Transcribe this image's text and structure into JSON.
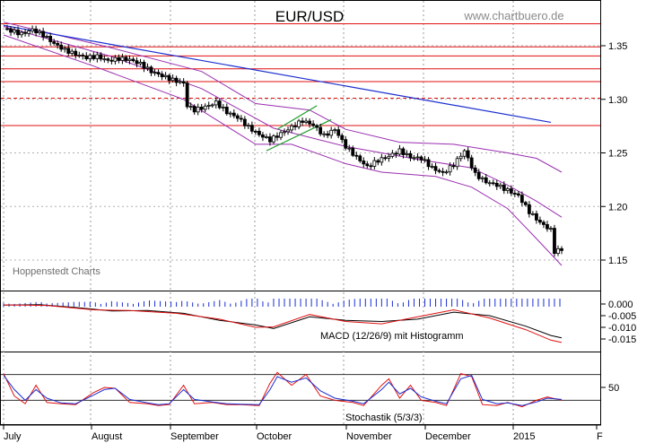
{
  "chart_data": [
    {
      "type": "candlestick",
      "title": "EUR/USD",
      "watermark": "www.chartbuero.de",
      "source_note": "Hoppenstedt Charts",
      "y_ticks": [
        "1.35",
        "1.30",
        "1.25",
        "1.20",
        "1.15"
      ],
      "y_tick_values": [
        1.35,
        1.3,
        1.25,
        1.2,
        1.15
      ],
      "ylim": [
        1.125,
        1.38
      ],
      "x_ticks": [
        "July",
        "August",
        "September",
        "October",
        "November",
        "December",
        "2015",
        "F"
      ],
      "horizontal_levels_solid": [
        1.3705,
        1.349,
        1.3405,
        1.3285,
        1.3165,
        1.2755
      ],
      "horizontal_levels_dashed": [
        1.301
      ],
      "trendline": {
        "color": "#1a2fd0",
        "from": {
          "day": 0,
          "value": 1.369
        },
        "to": {
          "day": 152,
          "value": 1.2785
        }
      },
      "channel_lines": {
        "color": "#1e9e2a",
        "upper": [
          {
            "day": 76,
            "value": 1.272
          },
          {
            "day": 87,
            "value": 1.294
          }
        ],
        "lower": [
          {
            "day": 73,
            "value": 1.252
          },
          {
            "day": 91,
            "value": 1.281
          }
        ]
      },
      "close_series": [
        {
          "day": 0,
          "value": 1.366
        },
        {
          "day": 2,
          "value": 1.364
        },
        {
          "day": 5,
          "value": 1.361
        },
        {
          "day": 8,
          "value": 1.365
        },
        {
          "day": 11,
          "value": 1.36
        },
        {
          "day": 14,
          "value": 1.352
        },
        {
          "day": 17,
          "value": 1.346
        },
        {
          "day": 20,
          "value": 1.342
        },
        {
          "day": 23,
          "value": 1.339
        },
        {
          "day": 26,
          "value": 1.34
        },
        {
          "day": 29,
          "value": 1.336
        },
        {
          "day": 32,
          "value": 1.338
        },
        {
          "day": 35,
          "value": 1.337
        },
        {
          "day": 38,
          "value": 1.333
        },
        {
          "day": 41,
          "value": 1.326
        },
        {
          "day": 44,
          "value": 1.322
        },
        {
          "day": 47,
          "value": 1.318
        },
        {
          "day": 50,
          "value": 1.315
        },
        {
          "day": 51,
          "value": 1.294
        },
        {
          "day": 53,
          "value": 1.29
        },
        {
          "day": 56,
          "value": 1.293
        },
        {
          "day": 59,
          "value": 1.297
        },
        {
          "day": 62,
          "value": 1.288
        },
        {
          "day": 65,
          "value": 1.283
        },
        {
          "day": 68,
          "value": 1.274
        },
        {
          "day": 71,
          "value": 1.267
        },
        {
          "day": 74,
          "value": 1.262
        },
        {
          "day": 77,
          "value": 1.268
        },
        {
          "day": 80,
          "value": 1.274
        },
        {
          "day": 83,
          "value": 1.28
        },
        {
          "day": 86,
          "value": 1.276
        },
        {
          "day": 89,
          "value": 1.266
        },
        {
          "day": 92,
          "value": 1.272
        },
        {
          "day": 95,
          "value": 1.256
        },
        {
          "day": 98,
          "value": 1.246
        },
        {
          "day": 101,
          "value": 1.237
        },
        {
          "day": 104,
          "value": 1.243
        },
        {
          "day": 107,
          "value": 1.247
        },
        {
          "day": 110,
          "value": 1.252
        },
        {
          "day": 113,
          "value": 1.246
        },
        {
          "day": 116,
          "value": 1.245
        },
        {
          "day": 119,
          "value": 1.236
        },
        {
          "day": 122,
          "value": 1.231
        },
        {
          "day": 125,
          "value": 1.239
        },
        {
          "day": 128,
          "value": 1.252
        },
        {
          "day": 131,
          "value": 1.23
        },
        {
          "day": 134,
          "value": 1.223
        },
        {
          "day": 137,
          "value": 1.22
        },
        {
          "day": 140,
          "value": 1.215
        },
        {
          "day": 143,
          "value": 1.21
        },
        {
          "day": 146,
          "value": 1.195
        },
        {
          "day": 149,
          "value": 1.185
        },
        {
          "day": 152,
          "value": 1.178
        },
        {
          "day": 153,
          "value": 1.158
        },
        {
          "day": 155,
          "value": 1.16
        }
      ],
      "bollinger_upper": [
        {
          "day": 0,
          "value": 1.372
        },
        {
          "day": 30,
          "value": 1.348
        },
        {
          "day": 55,
          "value": 1.326
        },
        {
          "day": 70,
          "value": 1.296
        },
        {
          "day": 85,
          "value": 1.29
        },
        {
          "day": 95,
          "value": 1.272
        },
        {
          "day": 110,
          "value": 1.26
        },
        {
          "day": 125,
          "value": 1.258
        },
        {
          "day": 140,
          "value": 1.25
        },
        {
          "day": 148,
          "value": 1.245
        },
        {
          "day": 155,
          "value": 1.232
        }
      ],
      "bollinger_lower": [
        {
          "day": 0,
          "value": 1.36
        },
        {
          "day": 25,
          "value": 1.331
        },
        {
          "day": 50,
          "value": 1.3
        },
        {
          "day": 70,
          "value": 1.258
        },
        {
          "day": 80,
          "value": 1.258
        },
        {
          "day": 95,
          "value": 1.24
        },
        {
          "day": 105,
          "value": 1.232
        },
        {
          "day": 120,
          "value": 1.228
        },
        {
          "day": 130,
          "value": 1.218
        },
        {
          "day": 140,
          "value": 1.198
        },
        {
          "day": 148,
          "value": 1.17
        },
        {
          "day": 155,
          "value": 1.145
        }
      ],
      "bollinger_mid": [
        {
          "day": 0,
          "value": 1.368
        },
        {
          "day": 30,
          "value": 1.34
        },
        {
          "day": 55,
          "value": 1.31
        },
        {
          "day": 75,
          "value": 1.273
        },
        {
          "day": 95,
          "value": 1.256
        },
        {
          "day": 115,
          "value": 1.244
        },
        {
          "day": 130,
          "value": 1.236
        },
        {
          "day": 140,
          "value": 1.22
        },
        {
          "day": 148,
          "value": 1.205
        },
        {
          "day": 155,
          "value": 1.19
        }
      ]
    },
    {
      "type": "line",
      "label": "MACD (12/26/9) mit Histogramm",
      "y_ticks": [
        "0.000",
        "-0.005",
        "-0.010",
        "-0.015"
      ],
      "y_tick_values": [
        0.0,
        -0.005,
        -0.01,
        -0.015
      ],
      "ylim": [
        -0.0185,
        0.0025
      ],
      "series": [
        {
          "color": "#000000",
          "points": [
            {
              "day": 0,
              "value": -0.0005
            },
            {
              "day": 10,
              "value": -0.0003
            },
            {
              "day": 20,
              "value": -0.0015
            },
            {
              "day": 30,
              "value": -0.003
            },
            {
              "day": 40,
              "value": -0.0028
            },
            {
              "day": 50,
              "value": -0.004
            },
            {
              "day": 60,
              "value": -0.007
            },
            {
              "day": 70,
              "value": -0.009
            },
            {
              "day": 75,
              "value": -0.0105
            },
            {
              "day": 85,
              "value": -0.0055
            },
            {
              "day": 95,
              "value": -0.007
            },
            {
              "day": 105,
              "value": -0.0075
            },
            {
              "day": 115,
              "value": -0.0065
            },
            {
              "day": 125,
              "value": -0.0035
            },
            {
              "day": 135,
              "value": -0.005
            },
            {
              "day": 145,
              "value": -0.0095
            },
            {
              "day": 152,
              "value": -0.0135
            },
            {
              "day": 155,
              "value": -0.0145
            }
          ]
        },
        {
          "color": "#e01010",
          "points": [
            {
              "day": 0,
              "value": -0.0004
            },
            {
              "day": 12,
              "value": -0.0006
            },
            {
              "day": 25,
              "value": -0.0025
            },
            {
              "day": 35,
              "value": -0.0028
            },
            {
              "day": 48,
              "value": -0.004
            },
            {
              "day": 60,
              "value": -0.0065
            },
            {
              "day": 70,
              "value": -0.01
            },
            {
              "day": 75,
              "value": -0.0098
            },
            {
              "day": 85,
              "value": -0.0045
            },
            {
              "day": 95,
              "value": -0.0075
            },
            {
              "day": 105,
              "value": -0.0085
            },
            {
              "day": 115,
              "value": -0.0055
            },
            {
              "day": 125,
              "value": -0.0025
            },
            {
              "day": 135,
              "value": -0.006
            },
            {
              "day": 145,
              "value": -0.011
            },
            {
              "day": 152,
              "value": -0.0155
            },
            {
              "day": 155,
              "value": -0.0165
            }
          ]
        }
      ]
    },
    {
      "type": "line",
      "label": "Stochastik (5/3/3)",
      "y_ticks": [
        "50"
      ],
      "y_tick_values": [
        50
      ],
      "ylim": [
        0,
        100
      ],
      "reference_levels": [
        80,
        20
      ],
      "series": [
        {
          "color": "#e01010",
          "points": [
            {
              "day": 0,
              "value": 82
            },
            {
              "day": 3,
              "value": 30
            },
            {
              "day": 6,
              "value": 12
            },
            {
              "day": 9,
              "value": 55
            },
            {
              "day": 12,
              "value": 15
            },
            {
              "day": 16,
              "value": 12
            },
            {
              "day": 20,
              "value": 10
            },
            {
              "day": 25,
              "value": 38
            },
            {
              "day": 28,
              "value": 50
            },
            {
              "day": 31,
              "value": 48
            },
            {
              "day": 35,
              "value": 15
            },
            {
              "day": 40,
              "value": 12
            },
            {
              "day": 43,
              "value": 8
            },
            {
              "day": 46,
              "value": 10
            },
            {
              "day": 50,
              "value": 55
            },
            {
              "day": 53,
              "value": 12
            },
            {
              "day": 58,
              "value": 15
            },
            {
              "day": 62,
              "value": 10
            },
            {
              "day": 66,
              "value": 10
            },
            {
              "day": 71,
              "value": 8
            },
            {
              "day": 74,
              "value": 60
            },
            {
              "day": 76,
              "value": 85
            },
            {
              "day": 80,
              "value": 55
            },
            {
              "day": 84,
              "value": 80
            },
            {
              "day": 88,
              "value": 30
            },
            {
              "day": 92,
              "value": 20
            },
            {
              "day": 97,
              "value": 15
            },
            {
              "day": 100,
              "value": 8
            },
            {
              "day": 105,
              "value": 55
            },
            {
              "day": 107,
              "value": 70
            },
            {
              "day": 110,
              "value": 25
            },
            {
              "day": 113,
              "value": 55
            },
            {
              "day": 116,
              "value": 20
            },
            {
              "day": 120,
              "value": 15
            },
            {
              "day": 123,
              "value": 8
            },
            {
              "day": 127,
              "value": 82
            },
            {
              "day": 130,
              "value": 75
            },
            {
              "day": 133,
              "value": 10
            },
            {
              "day": 137,
              "value": 8
            },
            {
              "day": 140,
              "value": 15
            },
            {
              "day": 144,
              "value": 5
            },
            {
              "day": 148,
              "value": 20
            },
            {
              "day": 151,
              "value": 28
            },
            {
              "day": 155,
              "value": 20
            }
          ]
        },
        {
          "color": "#1a2fd0",
          "points": [
            {
              "day": 0,
              "value": 78
            },
            {
              "day": 3,
              "value": 45
            },
            {
              "day": 6,
              "value": 20
            },
            {
              "day": 9,
              "value": 45
            },
            {
              "day": 12,
              "value": 25
            },
            {
              "day": 16,
              "value": 14
            },
            {
              "day": 20,
              "value": 12
            },
            {
              "day": 25,
              "value": 32
            },
            {
              "day": 28,
              "value": 45
            },
            {
              "day": 31,
              "value": 48
            },
            {
              "day": 35,
              "value": 22
            },
            {
              "day": 40,
              "value": 14
            },
            {
              "day": 43,
              "value": 10
            },
            {
              "day": 46,
              "value": 12
            },
            {
              "day": 50,
              "value": 45
            },
            {
              "day": 53,
              "value": 22
            },
            {
              "day": 58,
              "value": 16
            },
            {
              "day": 62,
              "value": 12
            },
            {
              "day": 66,
              "value": 11
            },
            {
              "day": 71,
              "value": 10
            },
            {
              "day": 74,
              "value": 45
            },
            {
              "day": 76,
              "value": 75
            },
            {
              "day": 80,
              "value": 62
            },
            {
              "day": 84,
              "value": 72
            },
            {
              "day": 88,
              "value": 42
            },
            {
              "day": 92,
              "value": 25
            },
            {
              "day": 97,
              "value": 18
            },
            {
              "day": 100,
              "value": 12
            },
            {
              "day": 105,
              "value": 45
            },
            {
              "day": 107,
              "value": 62
            },
            {
              "day": 110,
              "value": 35
            },
            {
              "day": 113,
              "value": 48
            },
            {
              "day": 116,
              "value": 28
            },
            {
              "day": 120,
              "value": 18
            },
            {
              "day": 123,
              "value": 12
            },
            {
              "day": 127,
              "value": 70
            },
            {
              "day": 130,
              "value": 78
            },
            {
              "day": 133,
              "value": 22
            },
            {
              "day": 137,
              "value": 12
            },
            {
              "day": 140,
              "value": 14
            },
            {
              "day": 144,
              "value": 8
            },
            {
              "day": 148,
              "value": 16
            },
            {
              "day": 151,
              "value": 25
            },
            {
              "day": 155,
              "value": 22
            }
          ]
        }
      ]
    }
  ]
}
